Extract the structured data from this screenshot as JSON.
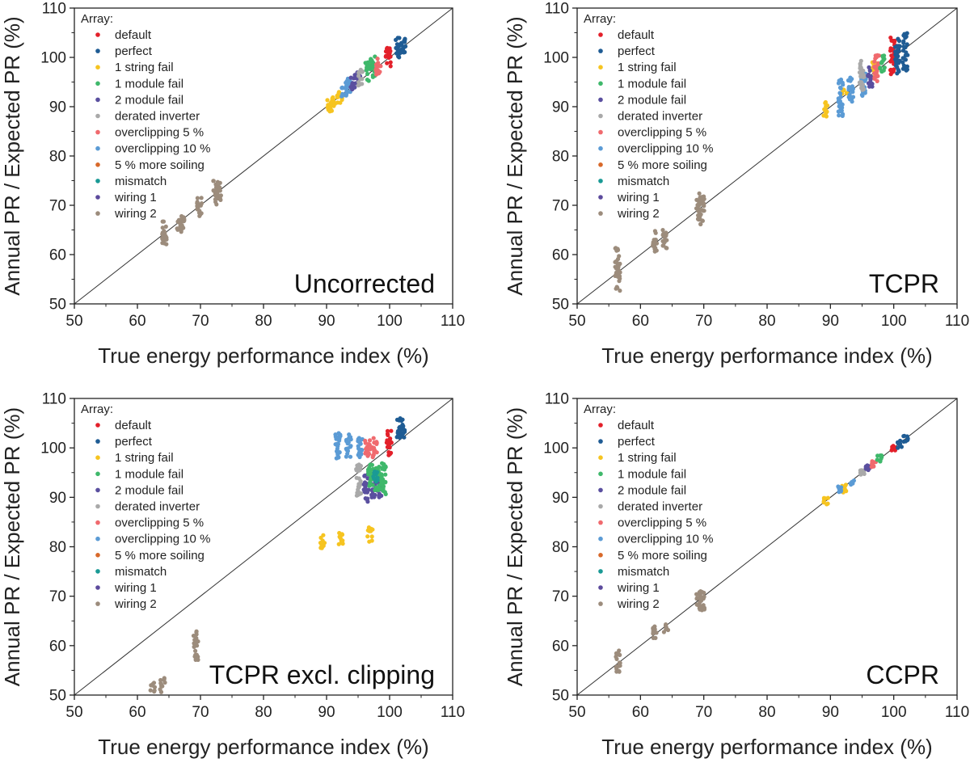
{
  "figure": {
    "legend_title": "Array:",
    "series_colors": {
      "default": "#e3202a",
      "perfect": "#1f5c94",
      "1 string fail": "#f6c420",
      "1 module fail": "#3fb86b",
      "2 module fail": "#5a4f9f",
      "derated inverter": "#a9a9a9",
      "overclipping 5 %": "#f06a6e",
      "overclipping 10 %": "#5b9bd5",
      "5 % more soiling": "#d8692a",
      "mismatch": "#1a9a95",
      "wiring 1": "#5c4a9c",
      "wiring 2": "#9c8c7c"
    }
  },
  "chart_data": [
    {
      "type": "scatter",
      "title": "Uncorrected",
      "xlabel": "True energy performance index (%)",
      "ylabel": "Annual PR / Expected PR (%)",
      "xlim": [
        50,
        110
      ],
      "ylim": [
        50,
        110
      ],
      "xticks": [
        "50",
        "60",
        "70",
        "80",
        "90",
        "100",
        "110"
      ],
      "yticks": [
        "50",
        "60",
        "70",
        "80",
        "90",
        "100",
        "110"
      ],
      "legend_entries": [
        "default",
        "perfect",
        "1 string fail",
        "1 module fail",
        "2 module fail",
        "derated inverter",
        "overclipping 5 %",
        "overclipping 10 %",
        "5 % more soiling",
        "mismatch",
        "wiring 1",
        "wiring 2"
      ],
      "series": [
        {
          "name": "wiring 2",
          "clusters": [
            {
              "x": 64.3,
              "y_min": 62,
              "y_max": 67
            },
            {
              "x": 66.6,
              "y_min": 64.5,
              "y_max": 68
            },
            {
              "x": 67.1,
              "y_min": 65,
              "y_max": 68
            },
            {
              "x": 69.8,
              "y_min": 67,
              "y_max": 71.5
            },
            {
              "x": 72.4,
              "y_min": 70,
              "y_max": 75
            },
            {
              "x": 72.9,
              "y_min": 71,
              "y_max": 75
            }
          ]
        },
        {
          "name": "1 string fail",
          "clusters": [
            {
              "x": 90.5,
              "y_min": 89,
              "y_max": 92
            },
            {
              "x": 91.3,
              "y_min": 90,
              "y_max": 92.5
            },
            {
              "x": 92.1,
              "y_min": 90.5,
              "y_max": 93
            }
          ]
        },
        {
          "name": "overclipping 10 %",
          "clusters": [
            {
              "x": 92.8,
              "y_min": 91.5,
              "y_max": 95
            },
            {
              "x": 93.6,
              "y_min": 92.5,
              "y_max": 96
            }
          ]
        },
        {
          "name": "2 module fail",
          "clusters": [
            {
              "x": 94.2,
              "y_min": 93,
              "y_max": 96.5
            },
            {
              "x": 95.1,
              "y_min": 94,
              "y_max": 97
            }
          ]
        },
        {
          "name": "derated inverter",
          "clusters": [
            {
              "x": 95.4,
              "y_min": 94,
              "y_max": 97.5
            }
          ]
        },
        {
          "name": "1 module fail",
          "clusters": [
            {
              "x": 96.5,
              "y_min": 95,
              "y_max": 99
            },
            {
              "x": 97.3,
              "y_min": 96,
              "y_max": 100.5
            }
          ]
        },
        {
          "name": "overclipping 5 %",
          "clusters": [
            {
              "x": 98.2,
              "y_min": 96.5,
              "y_max": 100
            }
          ]
        },
        {
          "name": "default",
          "clusters": [
            {
              "x": 99.8,
              "y_min": 98,
              "y_max": 102
            }
          ]
        },
        {
          "name": "perfect",
          "clusters": [
            {
              "x": 101.3,
              "y_min": 100,
              "y_max": 104
            },
            {
              "x": 102.2,
              "y_min": 100,
              "y_max": 104
            }
          ]
        }
      ]
    },
    {
      "type": "scatter",
      "title": "TCPR",
      "xlabel": "True energy performance index (%)",
      "ylabel": "Annual PR / Expected PR (%)",
      "xlim": [
        50,
        110
      ],
      "ylim": [
        50,
        110
      ],
      "xticks": [
        "50",
        "60",
        "70",
        "80",
        "90",
        "100",
        "110"
      ],
      "yticks": [
        "50",
        "60",
        "70",
        "80",
        "90",
        "100",
        "110"
      ],
      "legend_entries": [
        "default",
        "perfect",
        "1 string fail",
        "1 module fail",
        "2 module fail",
        "derated inverter",
        "overclipping 5 %",
        "overclipping 10 %",
        "5 % more soiling",
        "mismatch",
        "wiring 1",
        "wiring 2"
      ],
      "series": [
        {
          "name": "wiring 2",
          "clusters": [
            {
              "x": 56.4,
              "y_min": 52.5,
              "y_max": 61.5
            },
            {
              "x": 62.3,
              "y_min": 60.5,
              "y_max": 65
            },
            {
              "x": 63.9,
              "y_min": 61,
              "y_max": 65
            },
            {
              "x": 69.2,
              "y_min": 66,
              "y_max": 72.5
            },
            {
              "x": 69.7,
              "y_min": 66,
              "y_max": 72
            }
          ]
        },
        {
          "name": "1 string fail",
          "clusters": [
            {
              "x": 89.2,
              "y_min": 88,
              "y_max": 91
            },
            {
              "x": 92.2,
              "y_min": 92,
              "y_max": 93.5
            },
            {
              "x": 96.9,
              "y_min": 96,
              "y_max": 99.5
            }
          ]
        },
        {
          "name": "overclipping 10 %",
          "clusters": [
            {
              "x": 91.6,
              "y_min": 88,
              "y_max": 95.5
            },
            {
              "x": 93.2,
              "y_min": 91,
              "y_max": 96
            },
            {
              "x": 95.2,
              "y_min": 92,
              "y_max": 97
            }
          ]
        },
        {
          "name": "derated inverter",
          "clusters": [
            {
              "x": 95.0,
              "y_min": 93,
              "y_max": 99.5
            }
          ]
        },
        {
          "name": "2 module fail",
          "clusters": [
            {
              "x": 96.2,
              "y_min": 94,
              "y_max": 98
            }
          ]
        },
        {
          "name": "overclipping 5 %",
          "clusters": [
            {
              "x": 97.3,
              "y_min": 95,
              "y_max": 100.5
            }
          ]
        },
        {
          "name": "1 module fail",
          "clusters": [
            {
              "x": 98.2,
              "y_min": 97,
              "y_max": 101
            }
          ]
        },
        {
          "name": "default",
          "clusters": [
            {
              "x": 99.8,
              "y_min": 96,
              "y_max": 104.5
            }
          ]
        },
        {
          "name": "perfect",
          "clusters": [
            {
              "x": 100.6,
              "y_min": 96.5,
              "y_max": 104
            },
            {
              "x": 101.8,
              "y_min": 97,
              "y_max": 105
            }
          ]
        }
      ]
    },
    {
      "type": "scatter",
      "title": "TCPR excl. clipping",
      "xlabel": "True energy performance index (%)",
      "ylabel": "Annual PR / Expected PR (%)",
      "xlim": [
        50,
        110
      ],
      "ylim": [
        50,
        110
      ],
      "xticks": [
        "50",
        "60",
        "70",
        "80",
        "90",
        "100",
        "110"
      ],
      "yticks": [
        "50",
        "60",
        "70",
        "80",
        "90",
        "100",
        "110"
      ],
      "legend_entries": [
        "default",
        "perfect",
        "1 string fail",
        "1 module fail",
        "2 module fail",
        "derated inverter",
        "overclipping 5 %",
        "overclipping 10 %",
        "5 % more soiling",
        "mismatch",
        "wiring 1",
        "wiring 2"
      ],
      "series": [
        {
          "name": "wiring 2",
          "clusters": [
            {
              "x": 62.4,
              "y_min": 50.5,
              "y_max": 52.5
            },
            {
              "x": 64.0,
              "y_min": 50.5,
              "y_max": 53.5
            },
            {
              "x": 69.3,
              "y_min": 57,
              "y_max": 63
            }
          ]
        },
        {
          "name": "1 string fail",
          "clusters": [
            {
              "x": 89.3,
              "y_min": 79.5,
              "y_max": 83
            },
            {
              "x": 92.2,
              "y_min": 80,
              "y_max": 83
            },
            {
              "x": 96.9,
              "y_min": 81,
              "y_max": 84
            }
          ]
        },
        {
          "name": "overclipping 10 %",
          "clusters": [
            {
              "x": 91.8,
              "y_min": 97,
              "y_max": 103
            },
            {
              "x": 93.5,
              "y_min": 98,
              "y_max": 103
            },
            {
              "x": 95.3,
              "y_min": 98,
              "y_max": 102.5
            }
          ]
        },
        {
          "name": "overclipping 5 %",
          "clusters": [
            {
              "x": 96.5,
              "y_min": 98,
              "y_max": 102
            },
            {
              "x": 97.6,
              "y_min": 98,
              "y_max": 102
            }
          ]
        },
        {
          "name": "derated inverter",
          "clusters": [
            {
              "x": 95.1,
              "y_min": 90,
              "y_max": 97
            }
          ]
        },
        {
          "name": "2 module fail",
          "clusters": [
            {
              "x": 96.3,
              "y_min": 89,
              "y_max": 95
            },
            {
              "x": 97.4,
              "y_min": 90,
              "y_max": 95
            },
            {
              "x": 98.4,
              "y_min": 90,
              "y_max": 95
            }
          ]
        },
        {
          "name": "1 module fail",
          "clusters": [
            {
              "x": 97.0,
              "y_min": 92,
              "y_max": 97
            },
            {
              "x": 98.0,
              "y_min": 91,
              "y_max": 96.5
            },
            {
              "x": 99.0,
              "y_min": 90.5,
              "y_max": 97
            }
          ]
        },
        {
          "name": "mismatch",
          "clusters": [
            {
              "x": 97.8,
              "y_min": 93,
              "y_max": 96
            }
          ]
        },
        {
          "name": "default",
          "clusters": [
            {
              "x": 99.9,
              "y_min": 98,
              "y_max": 103.5
            }
          ]
        },
        {
          "name": "perfect",
          "clusters": [
            {
              "x": 101.5,
              "y_min": 102,
              "y_max": 106
            },
            {
              "x": 102.0,
              "y_min": 102,
              "y_max": 106
            }
          ]
        }
      ]
    },
    {
      "type": "scatter",
      "title": "CCPR",
      "xlabel": "True energy performance index (%)",
      "ylabel": "Annual PR / Expected PR (%)",
      "xlim": [
        50,
        110
      ],
      "ylim": [
        50,
        110
      ],
      "xticks": [
        "50",
        "60",
        "70",
        "80",
        "90",
        "100",
        "110"
      ],
      "yticks": [
        "50",
        "60",
        "70",
        "80",
        "90",
        "100",
        "110"
      ],
      "legend_entries": [
        "default",
        "perfect",
        "1 string fail",
        "1 module fail",
        "2 module fail",
        "derated inverter",
        "overclipping 5 %",
        "overclipping 10 %",
        "5 % more soiling",
        "mismatch",
        "wiring 1",
        "wiring 2"
      ],
      "series": [
        {
          "name": "wiring 2",
          "clusters": [
            {
              "x": 56.4,
              "y_min": 54.5,
              "y_max": 59
            },
            {
              "x": 62.3,
              "y_min": 61,
              "y_max": 64
            },
            {
              "x": 64.0,
              "y_min": 62.5,
              "y_max": 64.5
            },
            {
              "x": 69.2,
              "y_min": 67,
              "y_max": 71.5
            },
            {
              "x": 69.7,
              "y_min": 67,
              "y_max": 71
            }
          ]
        },
        {
          "name": "1 string fail",
          "clusters": [
            {
              "x": 89.3,
              "y_min": 88.5,
              "y_max": 90
            },
            {
              "x": 92.1,
              "y_min": 91,
              "y_max": 93
            }
          ]
        },
        {
          "name": "overclipping 10 %",
          "clusters": [
            {
              "x": 91.5,
              "y_min": 91,
              "y_max": 92.5
            },
            {
              "x": 93.5,
              "y_min": 92.5,
              "y_max": 94
            }
          ]
        },
        {
          "name": "derated inverter",
          "clusters": [
            {
              "x": 95.0,
              "y_min": 94.5,
              "y_max": 95.5
            }
          ]
        },
        {
          "name": "2 module fail",
          "clusters": [
            {
              "x": 96.0,
              "y_min": 95.5,
              "y_max": 96.5
            }
          ]
        },
        {
          "name": "overclipping 5 %",
          "clusters": [
            {
              "x": 96.8,
              "y_min": 96,
              "y_max": 97.5
            }
          ]
        },
        {
          "name": "1 module fail",
          "clusters": [
            {
              "x": 97.7,
              "y_min": 97,
              "y_max": 98.5
            }
          ]
        },
        {
          "name": "default",
          "clusters": [
            {
              "x": 99.9,
              "y_min": 99.5,
              "y_max": 100.5
            }
          ]
        },
        {
          "name": "perfect",
          "clusters": [
            {
              "x": 100.9,
              "y_min": 100,
              "y_max": 101.5
            },
            {
              "x": 101.9,
              "y_min": 101,
              "y_max": 102.5
            }
          ]
        }
      ]
    }
  ]
}
